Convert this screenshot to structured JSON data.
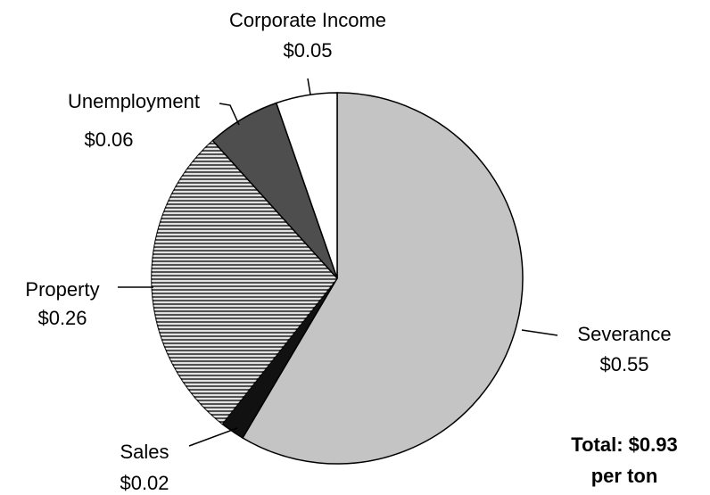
{
  "chart_data": {
    "type": "pie",
    "categories": [
      "Severance",
      "Sales",
      "Property",
      "Unemployment",
      "Corporate Income"
    ],
    "values": [
      0.55,
      0.02,
      0.26,
      0.06,
      0.05
    ],
    "value_labels": [
      "$0.55",
      "$0.02",
      "$0.26",
      "$0.06",
      "$0.05"
    ],
    "colors": [
      "#c4c4c4",
      "#111111",
      "#9a9a9a",
      "#4e4e4e",
      "#ffffff"
    ],
    "annotations": [
      "Total:  $0.93",
      "per ton"
    ]
  }
}
